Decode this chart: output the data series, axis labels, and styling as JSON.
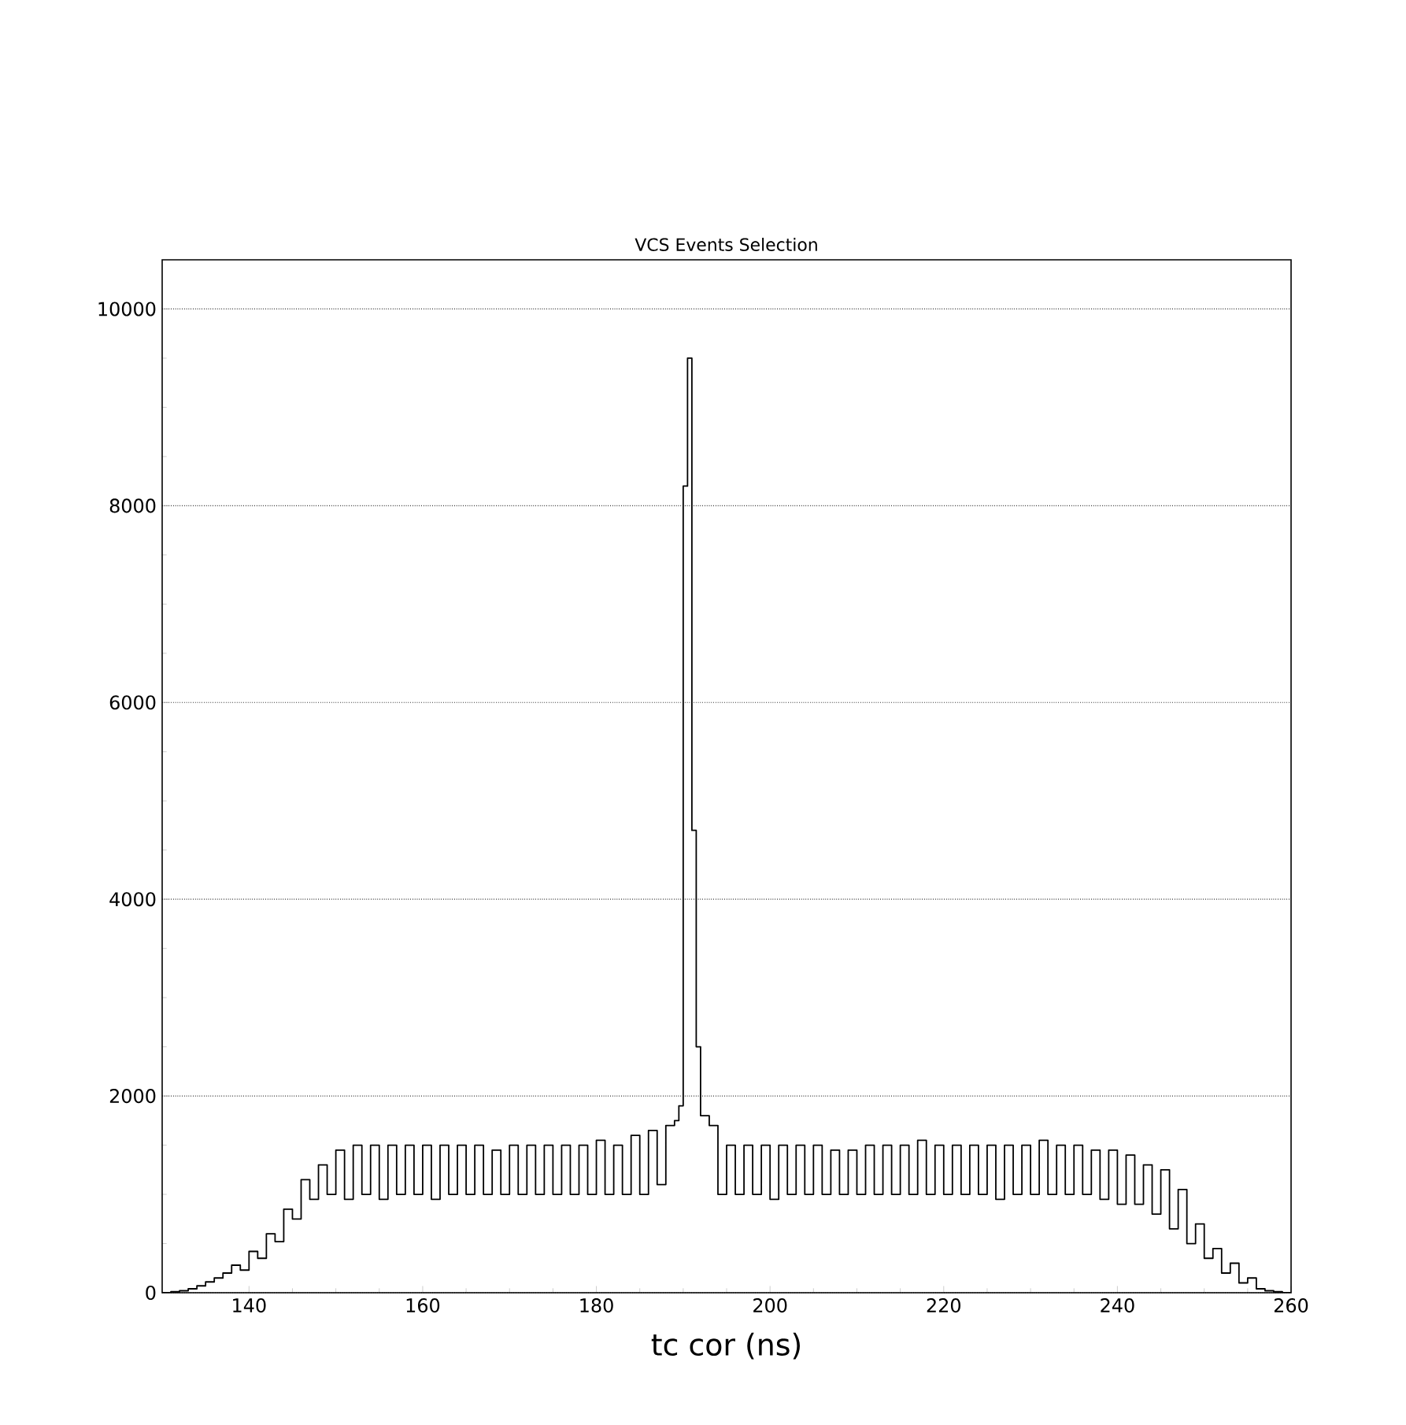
{
  "chart_data": {
    "type": "histogram",
    "title": "VCS Events Selection",
    "xlabel": "tc cor (ns)",
    "bins": [
      130,
      131,
      132,
      133,
      134,
      135,
      136,
      137,
      138,
      139,
      140,
      141,
      142,
      143,
      144,
      145,
      146,
      147,
      148,
      149,
      150,
      151,
      152,
      153,
      154,
      155,
      156,
      157,
      158,
      159,
      160,
      161,
      162,
      163,
      164,
      165,
      166,
      167,
      168,
      169,
      170,
      171,
      172,
      173,
      174,
      175,
      176,
      177,
      178,
      179,
      180,
      181,
      182,
      183,
      184,
      185,
      186,
      187,
      188,
      189,
      189.5,
      190,
      190.5,
      191,
      191.5,
      192,
      193,
      194,
      195,
      196,
      197,
      198,
      199,
      200,
      201,
      202,
      203,
      204,
      205,
      206,
      207,
      208,
      209,
      210,
      211,
      212,
      213,
      214,
      215,
      216,
      217,
      218,
      219,
      220,
      221,
      222,
      223,
      224,
      225,
      226,
      227,
      228,
      229,
      230,
      231,
      232,
      233,
      234,
      235,
      236,
      237,
      238,
      239,
      240,
      241,
      242,
      243,
      244,
      245,
      246,
      247,
      248,
      249,
      250,
      251,
      252,
      253,
      254,
      255,
      256,
      257,
      258,
      259,
      260
    ],
    "values": [
      0,
      10,
      20,
      40,
      70,
      110,
      150,
      200,
      280,
      230,
      420,
      350,
      600,
      520,
      850,
      750,
      1150,
      950,
      1300,
      1000,
      1450,
      950,
      1500,
      1000,
      1500,
      950,
      1500,
      1000,
      1500,
      1000,
      1500,
      950,
      1500,
      1000,
      1500,
      1000,
      1500,
      1000,
      1450,
      1000,
      1500,
      1000,
      1500,
      1000,
      1500,
      1000,
      1500,
      1000,
      1500,
      1000,
      1550,
      1000,
      1500,
      1000,
      1600,
      1000,
      1650,
      1100,
      1700,
      1750,
      1900,
      8200,
      9500,
      4700,
      2500,
      1800,
      1700,
      1000,
      1500,
      1000,
      1500,
      1000,
      1500,
      950,
      1500,
      1000,
      1500,
      1000,
      1500,
      1000,
      1450,
      1000,
      1450,
      1000,
      1500,
      1000,
      1500,
      1000,
      1500,
      1000,
      1550,
      1000,
      1500,
      1000,
      1500,
      1000,
      1500,
      1000,
      1500,
      950,
      1500,
      1000,
      1500,
      1000,
      1550,
      1000,
      1500,
      1000,
      1500,
      1000,
      1450,
      950,
      1450,
      900,
      1400,
      900,
      1300,
      800,
      1250,
      650,
      1050,
      500,
      700,
      350,
      450,
      200,
      300,
      100,
      150,
      40,
      20,
      10,
      0
    ],
    "color": "#000000",
    "xlim": [
      130,
      260
    ],
    "xticks": [
      140,
      160,
      180,
      200,
      220,
      240,
      260
    ],
    "ylim": [
      0,
      10500
    ],
    "yticks": [
      0,
      2000,
      4000,
      6000,
      8000,
      10000
    ],
    "grid": "y"
  }
}
